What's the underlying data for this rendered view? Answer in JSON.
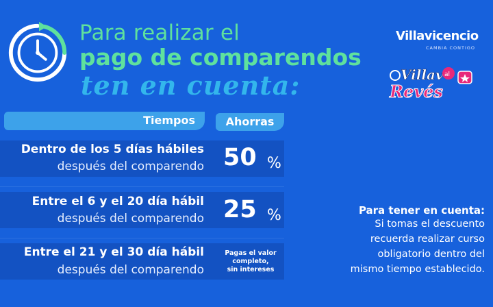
{
  "header": {
    "title_line1": "Para realizar el",
    "title_line2": "pago de comparendos",
    "title_script": "ten en cuenta:",
    "icon": "clock-icon"
  },
  "brand": {
    "name": "Villavicencio",
    "tagline": "CAMBIA CONTIGO",
    "campaign_logo": "Villavo al Revés",
    "campaign_logo_parts": [
      "Villav",
      "al",
      "Revés"
    ]
  },
  "table": {
    "header_time": "Tiempos",
    "header_savings": "Ahorras",
    "rows": [
      {
        "line1": "Dentro de los 5 días hábiles",
        "line2": "después del comparendo",
        "value": "50",
        "unit": "%"
      },
      {
        "line1": "Entre el 6 y el 20 día hábil",
        "line2": "después del comparendo",
        "value": "25",
        "unit": "%"
      },
      {
        "line1": "Entre el 21 y el 30 día hábil",
        "line2": "después del comparendo",
        "note_lines": [
          "Pagas el valor",
          "completo,",
          "sin intereses"
        ]
      }
    ]
  },
  "note": {
    "title": "Para tener en cuenta:",
    "lines": [
      "Si tomas el descuento",
      "recuerda realizar curso",
      "obligatorio dentro del",
      "mismo tiempo establecido."
    ]
  },
  "colors": {
    "background": "#1761dc",
    "title_green": "#5fe19d",
    "script_cyan": "#33b6ec",
    "header_bar": "#3da2ea",
    "logo_pink": "#e8297a"
  }
}
